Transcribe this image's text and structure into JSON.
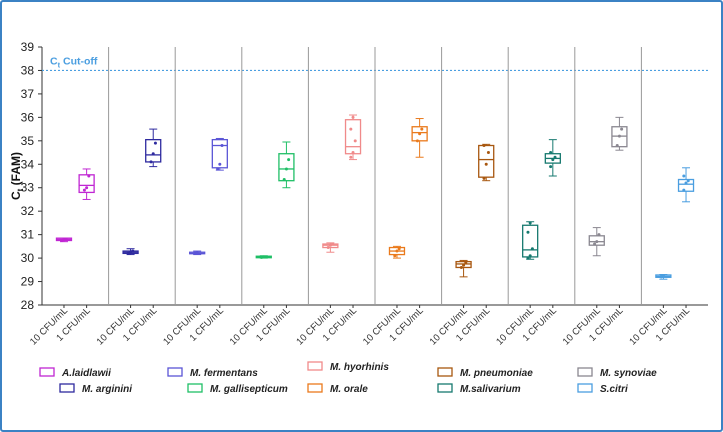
{
  "chart_data": {
    "type": "box",
    "ylabel": "C",
    "ylabel_sub": "t",
    "ylabel_suffix": " (FAM)",
    "ylim": [
      28,
      39
    ],
    "yticks": [
      28,
      29,
      30,
      31,
      32,
      33,
      34,
      35,
      36,
      37,
      38,
      39
    ],
    "cutoff": {
      "value": 38,
      "label": "C",
      "label_sub": "t",
      "label_suffix": " Cut-off",
      "color": "#4a9ee0"
    },
    "categories": [
      "10 CFU/mL",
      "1 CFU/mL"
    ],
    "series": [
      {
        "name": "A.laidlawii",
        "color": "#c026d3",
        "boxes": [
          {
            "min": 30.7,
            "q1": 30.75,
            "median": 30.8,
            "q3": 30.85,
            "max": 30.85,
            "points": [
              30.75,
              30.8,
              30.8
            ]
          },
          {
            "min": 32.5,
            "q1": 32.8,
            "median": 33.1,
            "q3": 33.55,
            "max": 33.8,
            "points": [
              32.9,
              33.0,
              33.5
            ]
          }
        ]
      },
      {
        "name": "M. arginini",
        "color": "#2e2a9f",
        "boxes": [
          {
            "min": 30.15,
            "q1": 30.2,
            "median": 30.25,
            "q3": 30.3,
            "max": 30.4,
            "points": [
              30.2,
              30.25,
              30.3
            ]
          },
          {
            "min": 33.9,
            "q1": 34.1,
            "median": 34.4,
            "q3": 35.05,
            "max": 35.5,
            "points": [
              34.1,
              34.45,
              34.9
            ]
          }
        ]
      },
      {
        "name": "M. fermentans",
        "color": "#5a55d6",
        "boxes": [
          {
            "min": 30.15,
            "q1": 30.2,
            "median": 30.2,
            "q3": 30.25,
            "max": 30.3,
            "points": [
              30.2,
              30.22
            ]
          },
          {
            "min": 33.75,
            "q1": 33.85,
            "median": 34.8,
            "q3": 35.05,
            "max": 35.1,
            "points": [
              33.8,
              34.0,
              34.8
            ]
          }
        ]
      },
      {
        "name": "M. gallisepticum",
        "color": "#1fbf66",
        "boxes": [
          {
            "min": 30.0,
            "q1": 30.02,
            "median": 30.05,
            "q3": 30.08,
            "max": 30.1,
            "points": [
              30.03,
              30.05
            ]
          },
          {
            "min": 33.0,
            "q1": 33.3,
            "median": 33.8,
            "q3": 34.45,
            "max": 34.95,
            "points": [
              33.35,
              33.8,
              34.2
            ]
          }
        ]
      },
      {
        "name": "M. hyorhinis",
        "color": "#f08a8a",
        "boxes": [
          {
            "min": 30.25,
            "q1": 30.45,
            "median": 30.55,
            "q3": 30.6,
            "max": 30.65,
            "points": [
              30.45,
              30.55,
              30.6
            ]
          },
          {
            "min": 34.2,
            "q1": 34.45,
            "median": 34.75,
            "q3": 35.9,
            "max": 36.1,
            "points": [
              34.3,
              34.5,
              35.0,
              35.5,
              36.0
            ]
          }
        ]
      },
      {
        "name": "M. orale",
        "color": "#ea7a1c",
        "boxes": [
          {
            "min": 30.0,
            "q1": 30.15,
            "median": 30.3,
            "q3": 30.45,
            "max": 30.5,
            "points": [
              30.1,
              30.3,
              30.4
            ]
          },
          {
            "min": 34.3,
            "q1": 35.0,
            "median": 35.35,
            "q3": 35.6,
            "max": 35.95,
            "points": [
              35.0,
              35.3,
              35.5
            ]
          }
        ]
      },
      {
        "name": "M. pneumoniae",
        "color": "#a8570f",
        "boxes": [
          {
            "min": 29.2,
            "q1": 29.6,
            "median": 29.75,
            "q3": 29.85,
            "max": 29.9,
            "points": [
              29.6,
              29.7,
              29.8
            ]
          },
          {
            "min": 33.3,
            "q1": 33.45,
            "median": 34.2,
            "q3": 34.8,
            "max": 34.85,
            "points": [
              33.4,
              34.0,
              34.5,
              34.8
            ]
          }
        ]
      },
      {
        "name": "M.salivarium",
        "color": "#16796f",
        "boxes": [
          {
            "min": 29.95,
            "q1": 30.05,
            "median": 30.35,
            "q3": 31.4,
            "max": 31.55,
            "points": [
              30.0,
              30.1,
              30.4,
              31.1,
              31.5
            ]
          },
          {
            "min": 33.5,
            "q1": 34.05,
            "median": 34.25,
            "q3": 34.45,
            "max": 35.05,
            "points": [
              33.9,
              34.2,
              34.3,
              34.5
            ]
          }
        ]
      },
      {
        "name": "M. synoviae",
        "color": "#8a8790",
        "boxes": [
          {
            "min": 30.1,
            "q1": 30.55,
            "median": 30.7,
            "q3": 30.95,
            "max": 31.3,
            "points": [
              30.6,
              30.7,
              31.0
            ]
          },
          {
            "min": 34.6,
            "q1": 34.75,
            "median": 35.2,
            "q3": 35.6,
            "max": 36.0,
            "points": [
              34.8,
              35.2,
              35.5
            ]
          }
        ]
      },
      {
        "name": "S.citri",
        "color": "#4a9ee0",
        "boxes": [
          {
            "min": 29.1,
            "q1": 29.18,
            "median": 29.22,
            "q3": 29.28,
            "max": 29.3,
            "points": [
              29.2,
              29.25
            ]
          },
          {
            "min": 32.4,
            "q1": 32.85,
            "median": 33.15,
            "q3": 33.35,
            "max": 33.85,
            "points": [
              32.9,
              33.2,
              33.3,
              33.5
            ]
          }
        ]
      }
    ],
    "legend_rows": [
      [
        "A.laidlawii",
        "M. fermentans",
        "M. hyorhinis",
        "M. pneumoniae",
        "M. synoviae"
      ],
      [
        "M. arginini",
        "M. gallisepticum",
        "M. orale",
        "M.salivarium",
        "S.citri"
      ]
    ]
  }
}
